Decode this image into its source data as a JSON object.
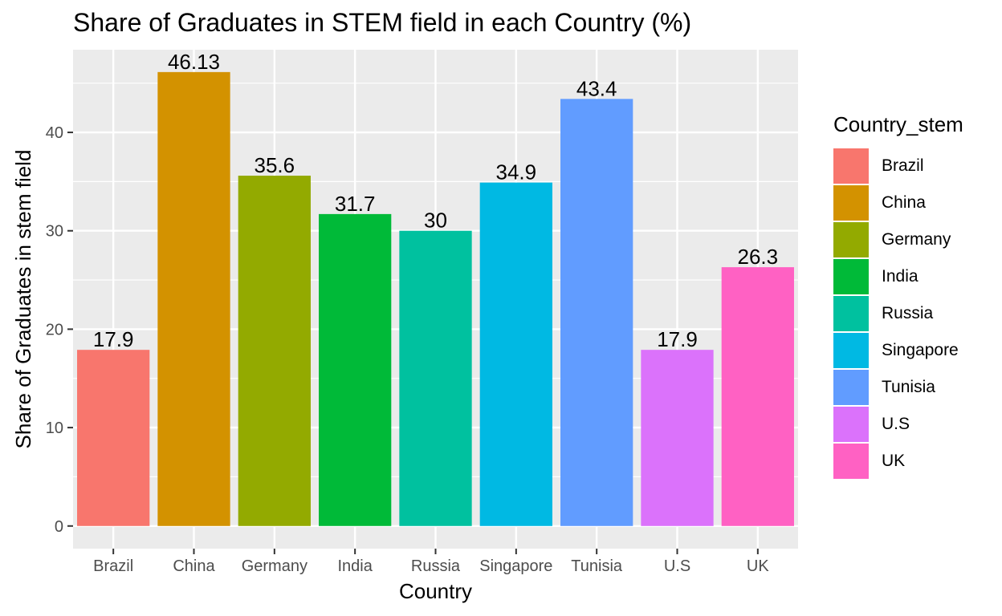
{
  "chart_data": {
    "type": "bar",
    "title": "Share of Graduates in STEM field in each Country (%)",
    "xlabel": "Country",
    "ylabel": "Share of Graduates in stem field",
    "categories": [
      "Brazil",
      "China",
      "Germany",
      "India",
      "Russia",
      "Singapore",
      "Tunisia",
      "U.S",
      "UK"
    ],
    "values": [
      17.9,
      46.13,
      35.6,
      31.7,
      30,
      34.9,
      43.4,
      17.9,
      26.3
    ],
    "data_labels": [
      "17.9",
      "46.13",
      "35.6",
      "31.7",
      "30",
      "34.9",
      "43.4",
      "17.9",
      "26.3"
    ],
    "colors": [
      "#F8766D",
      "#D39200",
      "#93AA00",
      "#00BA38",
      "#00C19F",
      "#00B9E3",
      "#619CFF",
      "#DB72FB",
      "#FF61C3"
    ],
    "ylim": [
      -2.3,
      48.4
    ],
    "yticks": [
      0,
      10,
      20,
      30,
      40
    ],
    "grid": true,
    "panel_background": "#EBEBEB",
    "legend": {
      "title": "Country_stem",
      "position": "right",
      "entries": [
        "Brazil",
        "China",
        "Germany",
        "India",
        "Russia",
        "Singapore",
        "Tunisia",
        "U.S",
        "UK"
      ]
    }
  }
}
